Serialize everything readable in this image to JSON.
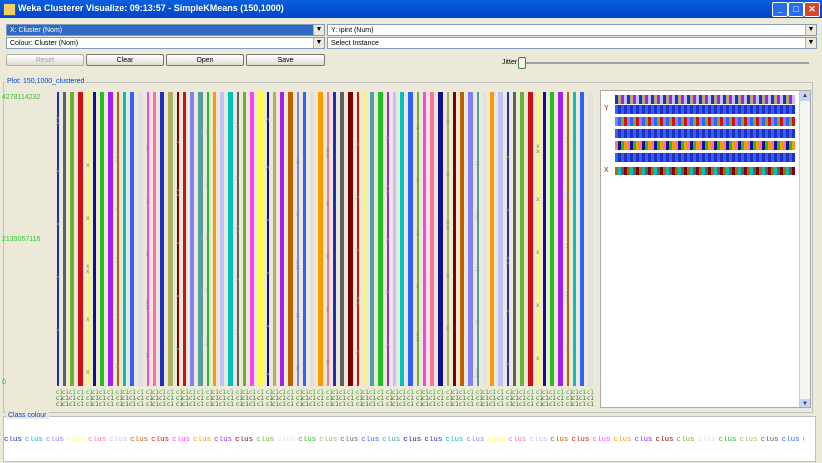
{
  "window": {
    "title": "Weka Clusterer Visualize: 09:13:57 - SimpleKMeans (150,1000)",
    "buttons": {
      "minimize": "_",
      "maximize": "□",
      "close": "✕"
    }
  },
  "controls": {
    "x_axis": "X: Cluster (Nom)",
    "y_axis": "Y: ipint (Num)",
    "colour": "Colour: Cluster (Nom)",
    "select": "Select Instance",
    "reset": "Reset",
    "clear": "Clear",
    "open": "Open",
    "save": "Save",
    "jitter": "Jitter"
  },
  "plot": {
    "title": "Plot: 150,1000_clustered",
    "y_ticks": [
      "4278114232",
      "2139057116",
      "0"
    ],
    "x_tick_label": "c1"
  },
  "attribute_panel": {
    "y_marker": "Y",
    "x_marker": "X"
  },
  "legend": {
    "title": "Class colour",
    "entry_label": "clus"
  },
  "colors": {
    "palette": [
      "#1f2fbf",
      "#d01010",
      "#20c020",
      "#00c0c0",
      "#ff40ff",
      "#b0b060",
      "#8080ff",
      "#ff9900",
      "#606060",
      "#ffff40",
      "#a020f0",
      "#3060ff",
      "#ff70a0",
      "#800000",
      "#50a0a0",
      "#c0c0ff",
      "#70b030",
      "#101090",
      "#c06000",
      "#e0e0e0"
    ],
    "accent": "#316ac5",
    "title_bar": "#0a5fe0"
  }
}
